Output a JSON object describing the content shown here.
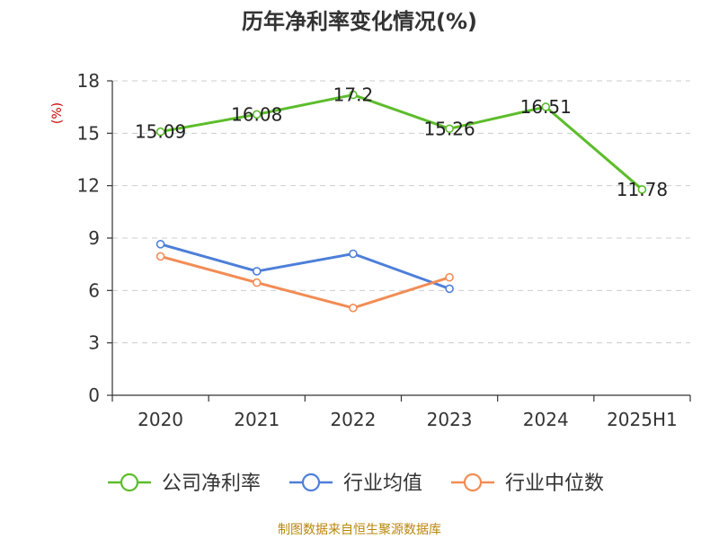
{
  "chart_data": {
    "type": "line",
    "title": "历年净利率变化情况(%)",
    "ylabel": "(%)",
    "categories": [
      "2020",
      "2021",
      "2022",
      "2023",
      "2024",
      "2025H1"
    ],
    "ylim": [
      0,
      18
    ],
    "yticks": [
      0,
      3,
      6,
      9,
      12,
      15,
      18
    ],
    "grid": true,
    "legend_position": "bottom",
    "series": [
      {
        "name": "公司净利率",
        "color": "#5cbd2b",
        "values": [
          15.09,
          16.08,
          17.2,
          15.26,
          16.51,
          11.78
        ],
        "labels": [
          "15.09",
          "16.08",
          "17.2",
          "15.26",
          "16.51",
          "11.78"
        ]
      },
      {
        "name": "行业均值",
        "color": "#4d7fd9",
        "values": [
          8.65,
          7.1,
          8.1,
          6.1,
          null,
          null
        ]
      },
      {
        "name": "行业中位数",
        "color": "#f28c55",
        "values": [
          7.95,
          6.45,
          5.0,
          6.75,
          null,
          null
        ]
      }
    ]
  },
  "source": "制图数据来自恒生聚源数据库"
}
